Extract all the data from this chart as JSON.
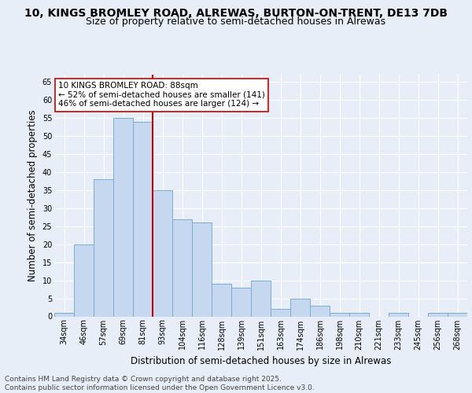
{
  "title_line1": "10, KINGS BROMLEY ROAD, ALREWAS, BURTON-ON-TRENT, DE13 7DB",
  "title_line2": "Size of property relative to semi-detached houses in Alrewas",
  "xlabel": "Distribution of semi-detached houses by size in Alrewas",
  "ylabel": "Number of semi-detached properties",
  "categories": [
    "34sqm",
    "46sqm",
    "57sqm",
    "69sqm",
    "81sqm",
    "93sqm",
    "104sqm",
    "116sqm",
    "128sqm",
    "139sqm",
    "151sqm",
    "163sqm",
    "174sqm",
    "186sqm",
    "198sqm",
    "210sqm",
    "221sqm",
    "233sqm",
    "245sqm",
    "256sqm",
    "268sqm"
  ],
  "values": [
    1,
    20,
    38,
    55,
    54,
    35,
    27,
    26,
    9,
    8,
    10,
    2,
    5,
    3,
    1,
    1,
    0,
    1,
    0,
    1,
    1
  ],
  "bar_color": "#c5d8f0",
  "bar_edge_color": "#7aadd4",
  "vline_x_index": 4.5,
  "vline_color": "#cc0000",
  "annotation_text": "10 KINGS BROMLEY ROAD: 88sqm\n← 52% of semi-detached houses are smaller (141)\n46% of semi-detached houses are larger (124) →",
  "annotation_box_color": "#ffffff",
  "annotation_box_edge": "#cc0000",
  "ylim": [
    0,
    67
  ],
  "yticks": [
    0,
    5,
    10,
    15,
    20,
    25,
    30,
    35,
    40,
    45,
    50,
    55,
    60,
    65
  ],
  "background_color": "#e8eef8",
  "footer_text": "Contains HM Land Registry data © Crown copyright and database right 2025.\nContains public sector information licensed under the Open Government Licence v3.0.",
  "title_fontsize": 10,
  "subtitle_fontsize": 9,
  "axis_fontsize": 8.5,
  "tick_fontsize": 7,
  "footer_fontsize": 6.5,
  "annotation_fontsize": 7.5
}
